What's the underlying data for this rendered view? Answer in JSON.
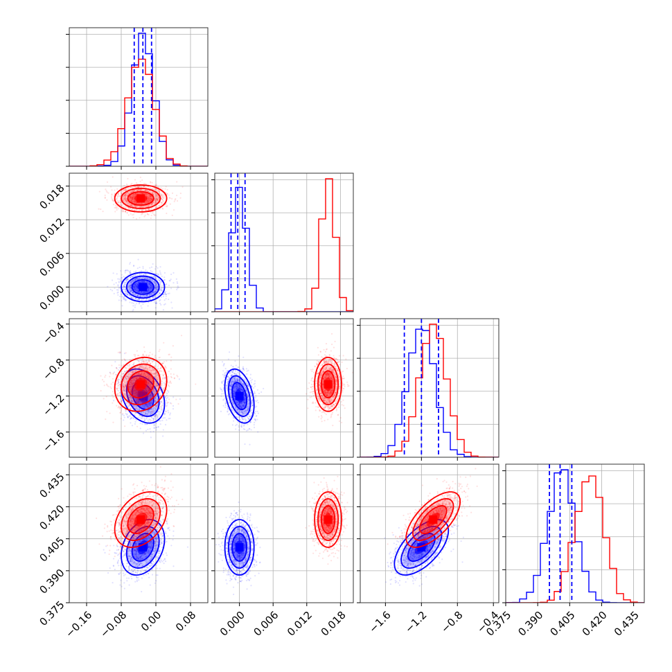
{
  "colors": {
    "series_a": "#0000ff",
    "series_b": "#ff0000",
    "grid": "#b0b0b0"
  },
  "chart_data": {
    "type": "corner",
    "title": "",
    "grid": true,
    "parameters": [
      {
        "ticks": [
          -0.16,
          -0.08,
          0.0,
          0.08
        ],
        "tick_labels": [
          "−0.16",
          "−0.08",
          "0.00",
          "0.08"
        ],
        "range": [
          -0.2,
          0.12
        ]
      },
      {
        "ticks": [
          0.0,
          0.006,
          0.012,
          0.018
        ],
        "tick_labels": [
          "0.000",
          "0.006",
          "0.012",
          "0.018"
        ],
        "range": [
          -0.0044,
          0.0203
        ]
      },
      {
        "ticks": [
          -1.6,
          -1.2,
          -0.8,
          -0.4
        ],
        "tick_labels": [
          "−1.6",
          "−1.2",
          "−0.8",
          "−0.4"
        ],
        "range": [
          -1.88,
          -0.34
        ]
      },
      {
        "ticks": [
          0.375,
          0.39,
          0.405,
          0.42,
          0.435
        ],
        "tick_labels": [
          "0.375",
          "0.390",
          "0.405",
          "0.420",
          "0.435"
        ],
        "range": [
          0.375,
          0.44
        ]
      }
    ],
    "series": [
      {
        "color": "blue",
        "mean": [
          -0.03,
          0.0,
          -1.2,
          0.401
        ],
        "std": [
          0.025,
          0.0013,
          0.15,
          0.0065
        ],
        "rho": {
          "0-2": -0.3,
          "0-3": 0.3,
          "1-2": -0.35,
          "2-3": 0.6
        },
        "quantiles": [
          [
            -0.05,
            -0.03,
            -0.01
          ],
          [
            -0.0015,
            -0.0003,
            0.001
          ],
          [
            -1.39,
            -1.2,
            -1.01
          ],
          [
            0.3955,
            0.4005,
            0.406
          ]
        ]
      },
      {
        "color": "red",
        "mean": [
          -0.035,
          0.0158,
          -1.07,
          0.414
        ],
        "std": [
          0.03,
          0.0012,
          0.15,
          0.0065
        ],
        "rho": {
          "0-2": 0.15,
          "0-3": 0.35,
          "1-2": 0.0,
          "2-3": 0.65
        }
      }
    ]
  }
}
